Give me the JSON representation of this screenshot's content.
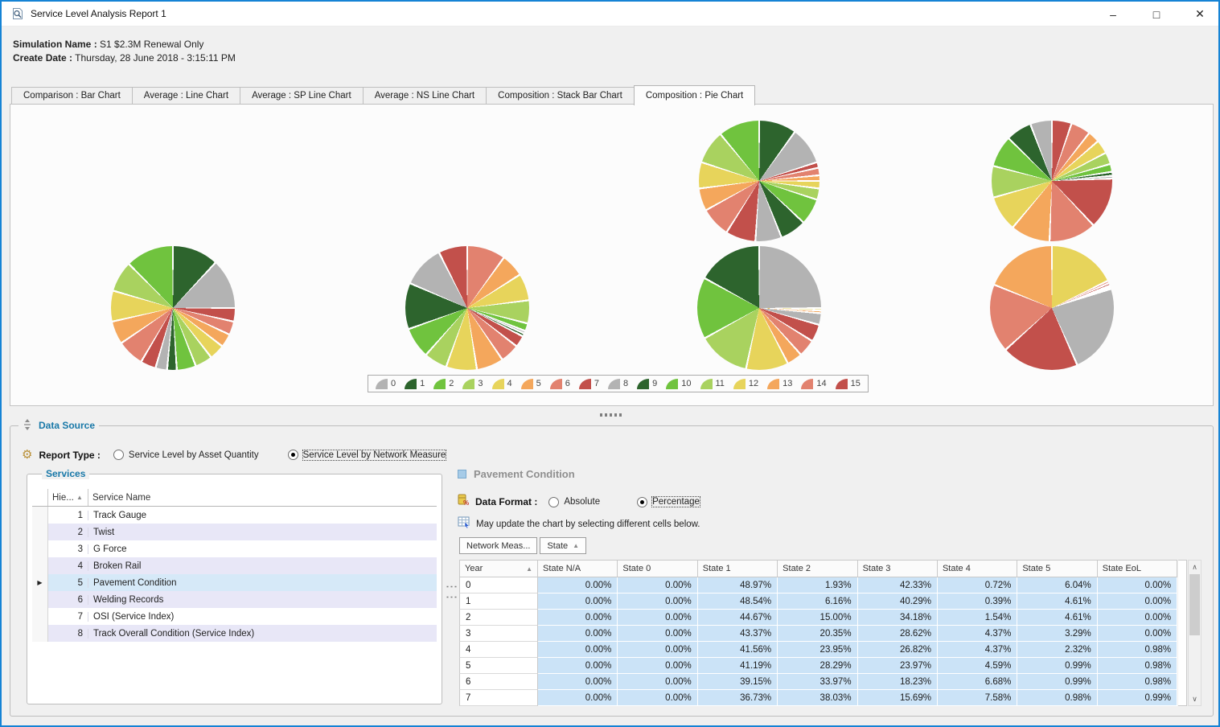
{
  "window": {
    "title": "Service Level Analysis Report 1",
    "controls": {
      "minimize": "–",
      "maximize": "□",
      "close": "✕"
    }
  },
  "header": {
    "simulation_label": "Simulation Name :",
    "simulation_value": "S1 $2.3M Renewal Only",
    "date_label": "Create Date :",
    "date_value": "Thursday, 28 June 2018 - 3:15:11 PM"
  },
  "tabs": [
    {
      "label": "Comparison : Bar Chart",
      "active": false
    },
    {
      "label": "Average : Line Chart",
      "active": false
    },
    {
      "label": "Average : SP Line Chart",
      "active": false
    },
    {
      "label": "Average : NS Line Chart",
      "active": false
    },
    {
      "label": "Composition : Stack Bar Chart",
      "active": false
    },
    {
      "label": "Composition : Pie Chart",
      "active": true
    }
  ],
  "palette": {
    "colors": [
      "#b3b3b3",
      "#2d642d",
      "#70c33e",
      "#a9d25f",
      "#e7d45b",
      "#f4a75c",
      "#e2826f",
      "#c2504b"
    ],
    "note": "legend states 0-15 cycle through these 8 colors twice"
  },
  "chart_data": {
    "type": "pie",
    "title": "Composition : Pie Chart",
    "legend_labels": [
      "0",
      "1",
      "2",
      "3",
      "4",
      "5",
      "6",
      "7",
      "8",
      "9",
      "10",
      "11",
      "12",
      "13",
      "14",
      "15"
    ],
    "legend_position": "bottom-center",
    "pies": [
      {
        "slices": [
          [
            1,
            10
          ],
          [
            0,
            10
          ],
          [
            7,
            1.5
          ],
          [
            6,
            2
          ],
          [
            5,
            1.5
          ],
          [
            4,
            2
          ],
          [
            3,
            3
          ],
          [
            2,
            7
          ],
          [
            1,
            7
          ],
          [
            0,
            7
          ],
          [
            7,
            8
          ],
          [
            6,
            8
          ],
          [
            5,
            6
          ],
          [
            4,
            7
          ],
          [
            3,
            9
          ],
          [
            2,
            11
          ]
        ]
      },
      {
        "slices": [
          [
            7,
            5
          ],
          [
            6,
            5
          ],
          [
            5,
            3
          ],
          [
            4,
            3.5
          ],
          [
            3,
            3
          ],
          [
            2,
            2
          ],
          [
            1,
            1
          ],
          [
            0,
            0.7
          ],
          [
            7,
            13
          ],
          [
            6,
            12
          ],
          [
            5,
            10
          ],
          [
            4,
            9
          ],
          [
            3,
            8
          ],
          [
            2,
            8
          ],
          [
            1,
            6.5
          ],
          [
            0,
            5.5
          ]
        ]
      },
      {
        "slices": [
          [
            1,
            12
          ],
          [
            0,
            13
          ],
          [
            7,
            3.5
          ],
          [
            6,
            3.5
          ],
          [
            5,
            3.5
          ],
          [
            4,
            4
          ],
          [
            3,
            4.5
          ],
          [
            2,
            5
          ],
          [
            1,
            2.5
          ],
          [
            0,
            3
          ],
          [
            7,
            4
          ],
          [
            6,
            7
          ],
          [
            5,
            6
          ],
          [
            4,
            8
          ],
          [
            3,
            8
          ],
          [
            2,
            12.5
          ]
        ]
      },
      {
        "slices": [
          [
            6,
            10
          ],
          [
            5,
            6
          ],
          [
            4,
            7
          ],
          [
            3,
            6
          ],
          [
            2,
            2
          ],
          [
            0,
            0.7
          ],
          [
            1,
            0.8
          ],
          [
            7,
            3
          ],
          [
            6,
            5
          ],
          [
            5,
            7
          ],
          [
            4,
            8
          ],
          [
            3,
            6
          ],
          [
            2,
            8
          ],
          [
            1,
            12
          ],
          [
            0,
            11
          ],
          [
            7,
            7.5
          ]
        ]
      },
      {
        "slices": [
          [
            0,
            25
          ],
          [
            4,
            0.6
          ],
          [
            5,
            0.7
          ],
          [
            0,
            3
          ],
          [
            7,
            4.5
          ],
          [
            6,
            4.5
          ],
          [
            5,
            4
          ],
          [
            4,
            11
          ],
          [
            3,
            13.5
          ],
          [
            2,
            16
          ],
          [
            1,
            17
          ]
        ]
      },
      {
        "slices": [
          [
            4,
            16
          ],
          [
            6,
            0.6
          ],
          [
            7,
            0.6
          ],
          [
            2,
            0.4
          ],
          [
            1,
            0.4
          ],
          [
            0,
            21
          ],
          [
            7,
            18
          ],
          [
            6,
            16
          ],
          [
            5,
            17
          ]
        ]
      }
    ]
  },
  "datasource": {
    "label": "Data Source",
    "report_type_label": "Report Type :",
    "options": [
      {
        "label": "Service Level by Asset Quantity",
        "selected": false
      },
      {
        "label": "Service Level by Network Measure",
        "selected": true
      }
    ]
  },
  "services": {
    "label": "Services",
    "columns": {
      "hierarchy": "Hie...",
      "name": "Service Name"
    },
    "sort_glyph": "▲",
    "selected_index": 4,
    "rows": [
      {
        "num": "1",
        "name": "Track Gauge"
      },
      {
        "num": "2",
        "name": "Twist"
      },
      {
        "num": "3",
        "name": "G Force"
      },
      {
        "num": "4",
        "name": "Broken Rail"
      },
      {
        "num": "5",
        "name": "Pavement Condition"
      },
      {
        "num": "6",
        "name": "Welding Records"
      },
      {
        "num": "7",
        "name": "OSI (Service Index)"
      },
      {
        "num": "8",
        "name": "Track Overall Condition (Service Index)"
      }
    ]
  },
  "detail": {
    "title": "Pavement Condition",
    "data_format_label": "Data Format :",
    "format_options": [
      {
        "label": "Absolute",
        "selected": false
      },
      {
        "label": "Percentage",
        "selected": true
      }
    ],
    "hint": "May update the chart by selecting different cells below.",
    "chips": [
      {
        "label": "Network Meas...",
        "sort": ""
      },
      {
        "label": "State",
        "sort": "▲"
      }
    ],
    "table": {
      "year_header": "Year",
      "year_sort_glyph": "▲",
      "columns": [
        "State N/A",
        "State 0",
        "State 1",
        "State 2",
        "State 3",
        "State 4",
        "State 5",
        "State EoL"
      ],
      "rows": [
        {
          "year": "0",
          "values": [
            "0.00%",
            "0.00%",
            "48.97%",
            "1.93%",
            "42.33%",
            "0.72%",
            "6.04%",
            "0.00%"
          ]
        },
        {
          "year": "1",
          "values": [
            "0.00%",
            "0.00%",
            "48.54%",
            "6.16%",
            "40.29%",
            "0.39%",
            "4.61%",
            "0.00%"
          ]
        },
        {
          "year": "2",
          "values": [
            "0.00%",
            "0.00%",
            "44.67%",
            "15.00%",
            "34.18%",
            "1.54%",
            "4.61%",
            "0.00%"
          ]
        },
        {
          "year": "3",
          "values": [
            "0.00%",
            "0.00%",
            "43.37%",
            "20.35%",
            "28.62%",
            "4.37%",
            "3.29%",
            "0.00%"
          ]
        },
        {
          "year": "4",
          "values": [
            "0.00%",
            "0.00%",
            "41.56%",
            "23.95%",
            "26.82%",
            "4.37%",
            "2.32%",
            "0.98%"
          ]
        },
        {
          "year": "5",
          "values": [
            "0.00%",
            "0.00%",
            "41.19%",
            "28.29%",
            "23.97%",
            "4.59%",
            "0.99%",
            "0.98%"
          ]
        },
        {
          "year": "6",
          "values": [
            "0.00%",
            "0.00%",
            "39.15%",
            "33.97%",
            "18.23%",
            "6.68%",
            "0.99%",
            "0.98%"
          ]
        },
        {
          "year": "7",
          "values": [
            "0.00%",
            "0.00%",
            "36.73%",
            "38.03%",
            "15.69%",
            "7.58%",
            "0.98%",
            "0.99%"
          ]
        }
      ]
    }
  }
}
